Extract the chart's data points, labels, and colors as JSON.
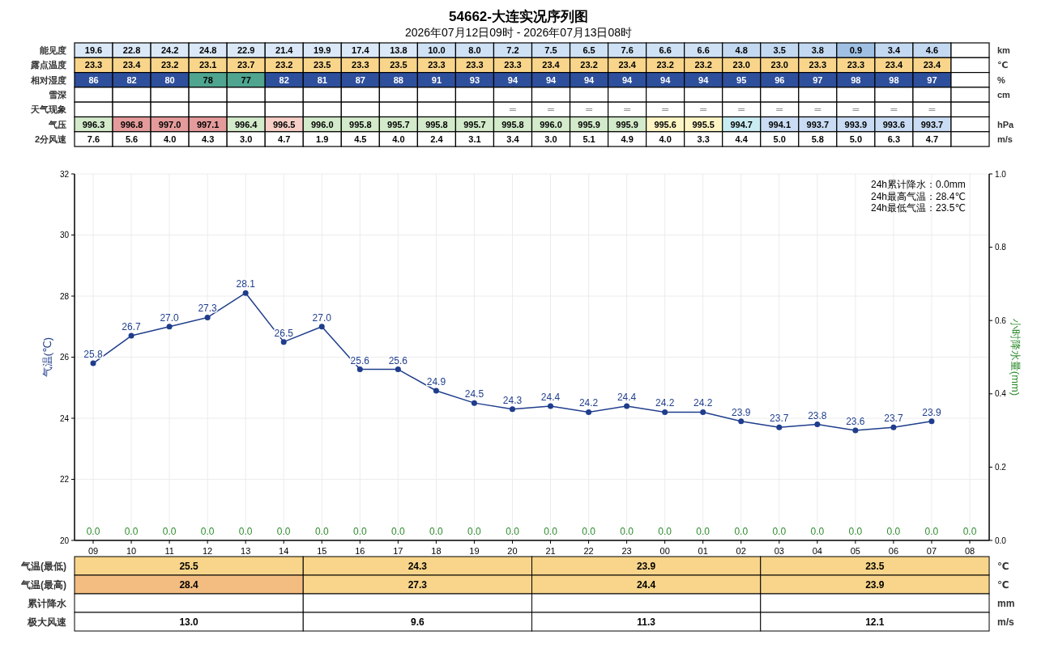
{
  "chart_data": [
    {
      "type": "heatmap",
      "title": "54662-大连实况序列图",
      "subtitle": "2026年07月12日09时 - 2026年07月13日08时",
      "categories": [
        null,
        null,
        null,
        null,
        null,
        null,
        null,
        null,
        null,
        null,
        null,
        null,
        null,
        null,
        null,
        null,
        null,
        null,
        null,
        null,
        null,
        null,
        null,
        null
      ],
      "y_categories": [
        "能见度",
        "露点温度",
        "相对湿度",
        "雪深",
        "天气现象",
        "气压",
        "2分风速"
      ],
      "y2_categories": [
        "km",
        "℃",
        "%",
        "cm",
        null,
        "hPa",
        "m/s"
      ],
      "cells": [
        [
          19.6,
          22.8,
          24.2,
          24.8,
          22.9,
          21.4,
          19.9,
          17.4,
          13.8,
          10.0,
          8.0,
          7.2,
          7.5,
          6.5,
          7.6,
          6.6,
          6.6,
          4.8,
          3.5,
          3.8,
          0.9,
          3.4,
          4.6,
          null
        ],
        [
          23.3,
          23.4,
          23.2,
          23.1,
          23.7,
          23.2,
          23.5,
          23.3,
          23.5,
          23.3,
          23.3,
          23.3,
          23.4,
          23.2,
          23.4,
          23.2,
          23.2,
          23.0,
          23.0,
          23.3,
          23.3,
          23.4,
          23.4,
          null
        ],
        [
          86,
          82,
          80,
          78,
          77,
          82,
          81,
          87,
          88,
          91,
          93,
          94,
          94,
          94,
          94,
          94,
          94,
          95,
          96,
          97,
          98,
          98,
          97,
          null
        ],
        [
          null,
          null,
          null,
          null,
          null,
          null,
          null,
          null,
          null,
          null,
          null,
          null,
          null,
          null,
          null,
          null,
          null,
          null,
          null,
          null,
          null,
          null,
          null,
          null
        ],
        [
          null,
          null,
          null,
          null,
          null,
          null,
          null,
          null,
          null,
          null,
          null,
          null,
          null,
          null,
          null,
          null,
          null,
          null,
          null,
          null,
          null,
          null,
          null,
          null
        ],
        [
          996.3,
          996.8,
          997.0,
          997.1,
          996.4,
          996.5,
          996.0,
          995.8,
          995.7,
          995.8,
          995.7,
          995.8,
          996.0,
          995.9,
          995.9,
          995.6,
          995.5,
          994.7,
          994.1,
          993.7,
          993.9,
          993.6,
          993.7,
          null
        ],
        [
          7.6,
          5.6,
          4.0,
          4.3,
          3.0,
          4.7,
          1.9,
          4.5,
          4.0,
          2.4,
          3.1,
          3.4,
          3.0,
          5.1,
          4.9,
          4.0,
          3.3,
          4.4,
          5.0,
          5.8,
          5.0,
          6.3,
          4.7,
          null
        ]
      ],
      "cell_labels": [
        [
          "19.6",
          "22.8",
          "24.2",
          "24.8",
          "22.9",
          "21.4",
          "19.9",
          "17.4",
          "13.8",
          "10.0",
          "8.0",
          "7.2",
          "7.5",
          "6.5",
          "7.6",
          "6.6",
          "6.6",
          "4.8",
          "3.5",
          "3.8",
          "0.9",
          "3.4",
          "4.6",
          null
        ],
        [
          "23.3",
          "23.4",
          "23.2",
          "23.1",
          "23.7",
          "23.2",
          "23.5",
          "23.3",
          "23.5",
          "23.3",
          "23.3",
          "23.3",
          "23.4",
          "23.2",
          "23.4",
          "23.2",
          "23.2",
          "23.0",
          "23.0",
          "23.3",
          "23.3",
          "23.4",
          "23.4",
          null
        ],
        [
          "86",
          "82",
          "80",
          "78",
          "77",
          "82",
          "81",
          "87",
          "88",
          "91",
          "93",
          "94",
          "94",
          "94",
          "94",
          "94",
          "94",
          "95",
          "96",
          "97",
          "98",
          "98",
          "97",
          null
        ],
        [
          null,
          null,
          null,
          null,
          null,
          null,
          null,
          null,
          null,
          null,
          null,
          null,
          null,
          null,
          null,
          null,
          null,
          null,
          null,
          null,
          null,
          null,
          null,
          null
        ],
        [
          null,
          null,
          null,
          null,
          null,
          null,
          null,
          null,
          null,
          null,
          null,
          "═",
          "═",
          "═",
          "═",
          "═",
          "═",
          "═",
          "═",
          "═",
          "═",
          "═",
          "═",
          null
        ],
        [
          "996.3",
          "996.8",
          "997.0",
          "997.1",
          "996.4",
          "996.5",
          "996.0",
          "995.8",
          "995.7",
          "995.8",
          "995.7",
          "995.8",
          "996.0",
          "995.9",
          "995.9",
          "995.6",
          "995.5",
          "994.7",
          "994.1",
          "993.7",
          "993.9",
          "993.6",
          "993.7",
          null
        ],
        [
          "7.6",
          "5.6",
          "4.0",
          "4.3",
          "3.0",
          "4.7",
          "1.9",
          "4.5",
          "4.0",
          "2.4",
          "3.1",
          "3.4",
          "3.0",
          "5.1",
          "4.9",
          "4.0",
          "3.3",
          "4.4",
          "5.0",
          "5.8",
          "5.0",
          "6.3",
          "4.7",
          null
        ]
      ],
      "colors": [
        [
          "#dbe8f7",
          "#dbe8f7",
          "#dbe8f7",
          "#dbe8f7",
          "#dbe8f7",
          "#dbe8f7",
          "#dbe8f7",
          "#dbe8f7",
          "#dbe8f7",
          "#cfe1f4",
          "#cfe1f4",
          "#cfe1f4",
          "#cfe1f4",
          "#cfe1f4",
          "#cfe1f4",
          "#cfe1f4",
          "#cfe1f4",
          "#c3d9f1",
          "#c3d9f1",
          "#c3d9f1",
          "#9fc0e3",
          "#c3d9f1",
          "#c3d9f1",
          "#ffffff"
        ],
        [
          "#f8d58a",
          "#f8d58a",
          "#f8d58a",
          "#f8d58a",
          "#f8d58a",
          "#f8d58a",
          "#f8d58a",
          "#f8d58a",
          "#f8d58a",
          "#f8d58a",
          "#f8d58a",
          "#f8d58a",
          "#f8d58a",
          "#f8d58a",
          "#f8d58a",
          "#f8d58a",
          "#f8d58a",
          "#f8d58a",
          "#f8d58a",
          "#f8d58a",
          "#f8d58a",
          "#f8d58a",
          "#f8d58a",
          "#ffffff"
        ],
        [
          "#2e4f9c",
          "#2e4f9c",
          "#2e4f9c",
          "#4fa58f",
          "#4fa58f",
          "#2e4f9c",
          "#2e4f9c",
          "#2e4f9c",
          "#2e4f9c",
          "#2e4f9c",
          "#2e4f9c",
          "#2e4f9c",
          "#2e4f9c",
          "#2e4f9c",
          "#2e4f9c",
          "#2e4f9c",
          "#2e4f9c",
          "#2e4f9c",
          "#2e4f9c",
          "#2e4f9c",
          "#2e4f9c",
          "#2e4f9c",
          "#2e4f9c",
          "#ffffff"
        ],
        [
          "#ffffff",
          "#ffffff",
          "#ffffff",
          "#ffffff",
          "#ffffff",
          "#ffffff",
          "#ffffff",
          "#ffffff",
          "#ffffff",
          "#ffffff",
          "#ffffff",
          "#ffffff",
          "#ffffff",
          "#ffffff",
          "#ffffff",
          "#ffffff",
          "#ffffff",
          "#ffffff",
          "#ffffff",
          "#ffffff",
          "#ffffff",
          "#ffffff",
          "#ffffff",
          "#ffffff"
        ],
        [
          "#ffffff",
          "#ffffff",
          "#ffffff",
          "#ffffff",
          "#ffffff",
          "#ffffff",
          "#ffffff",
          "#ffffff",
          "#ffffff",
          "#ffffff",
          "#ffffff",
          "#ffffff",
          "#ffffff",
          "#ffffff",
          "#ffffff",
          "#ffffff",
          "#ffffff",
          "#ffffff",
          "#ffffff",
          "#ffffff",
          "#ffffff",
          "#ffffff",
          "#ffffff",
          "#ffffff"
        ],
        [
          "#d3eacb",
          "#e59b9b",
          "#e59b9b",
          "#e59b9b",
          "#d3eacb",
          "#f7cfc7",
          "#d3eacb",
          "#d3eacb",
          "#d3eacb",
          "#d3eacb",
          "#d3eacb",
          "#d3eacb",
          "#d3eacb",
          "#d3eacb",
          "#d3eacb",
          "#fdf5c4",
          "#fdf5c4",
          "#c8ecf2",
          "#c9dcf3",
          "#c9dcf3",
          "#c9dcf3",
          "#c9dcf3",
          "#c9dcf3",
          "#ffffff"
        ],
        [
          "#ffffff",
          "#ffffff",
          "#ffffff",
          "#ffffff",
          "#ffffff",
          "#ffffff",
          "#ffffff",
          "#ffffff",
          "#ffffff",
          "#ffffff",
          "#ffffff",
          "#ffffff",
          "#ffffff",
          "#ffffff",
          "#ffffff",
          "#ffffff",
          "#ffffff",
          "#ffffff",
          "#ffffff",
          "#ffffff",
          "#ffffff",
          "#ffffff",
          "#ffffff",
          "#ffffff"
        ]
      ]
    },
    {
      "type": "line",
      "categories": [
        "09",
        "10",
        "11",
        "12",
        "13",
        "14",
        "15",
        "16",
        "17",
        "18",
        "19",
        "20",
        "21",
        "22",
        "23",
        "00",
        "01",
        "02",
        "03",
        "04",
        "05",
        "06",
        "07",
        "08"
      ],
      "ylabel": "气温(℃)",
      "y2label": "小时降水量(mm)",
      "ylim": [
        20,
        32
      ],
      "yticks": [
        20,
        22,
        24,
        26,
        28,
        30,
        32
      ],
      "y2lim": [
        0,
        1
      ],
      "y2ticks": [
        {
          "value": 0,
          "label": "0.0"
        },
        {
          "value": 0.2,
          "label": "0.2"
        },
        {
          "value": 0.4,
          "label": "0.4"
        },
        {
          "value": 0.6,
          "label": "0.6"
        },
        {
          "value": 0.8,
          "label": "0.8"
        },
        {
          "value": 1,
          "label": "1.0"
        }
      ],
      "grid": true,
      "marker": "circle",
      "series": [
        {
          "type": "line",
          "color": "#1f3d8c",
          "values": [
            25.8,
            26.7,
            27.0,
            27.3,
            28.1,
            26.5,
            27.0,
            25.6,
            25.6,
            24.9,
            24.5,
            24.3,
            24.4,
            24.2,
            24.4,
            24.2,
            24.2,
            23.9,
            23.7,
            23.8,
            23.6,
            23.7,
            23.9,
            null
          ],
          "value_labels": [
            "25.8",
            "26.7",
            "27.0",
            "27.3",
            "28.1",
            "26.5",
            "27.0",
            "25.6",
            "25.6",
            "24.9",
            "24.5",
            "24.3",
            "24.4",
            "24.2",
            "24.4",
            "24.2",
            "24.2",
            "23.9",
            "23.7",
            "23.8",
            "23.6",
            "23.7",
            "23.9",
            null
          ]
        },
        {
          "type": "bar",
          "axis": "y2",
          "color": "#2e8b2e",
          "values": [
            0,
            0,
            0,
            0,
            0,
            0,
            0,
            0,
            0,
            0,
            0,
            0,
            0,
            0,
            0,
            0,
            0,
            0,
            0,
            0,
            0,
            0,
            0,
            0
          ],
          "value_labels": [
            "0.0",
            "0.0",
            "0.0",
            "0.0",
            "0.0",
            "0.0",
            "0.0",
            "0.0",
            "0.0",
            "0.0",
            "0.0",
            "0.0",
            "0.0",
            "0.0",
            "0.0",
            "0.0",
            "0.0",
            "0.0",
            "0.0",
            "0.0",
            "0.0",
            "0.0",
            "0.0",
            "0.0"
          ]
        }
      ],
      "annotations": [
        "24h累计降水：0.0mm",
        "24h最高气温：28.4℃",
        "24h最低气温：23.5℃"
      ]
    },
    {
      "type": "heatmap",
      "categories": [
        null,
        null,
        null,
        null
      ],
      "y_categories": [
        "气温(最低)",
        "气温(最高)",
        "累计降水",
        "极大风速"
      ],
      "y2_categories": [
        "℃",
        "℃",
        "mm",
        "m/s"
      ],
      "cells": [
        [
          25.5,
          24.3,
          23.9,
          23.5
        ],
        [
          28.4,
          27.3,
          24.4,
          23.9
        ],
        [
          null,
          null,
          null,
          null
        ],
        [
          13.0,
          9.6,
          11.3,
          12.1
        ]
      ],
      "cell_labels": [
        [
          "25.5",
          "24.3",
          "23.9",
          "23.5"
        ],
        [
          "28.4",
          "27.3",
          "24.4",
          "23.9"
        ],
        [
          null,
          null,
          null,
          null
        ],
        [
          "13.0",
          "9.6",
          "11.3",
          "12.1"
        ]
      ],
      "colors": [
        [
          "#f8d58a",
          "#f8d58a",
          "#f8d58a",
          "#f8d58a"
        ],
        [
          "#f3bd82",
          "#f8d58a",
          "#f8d58a",
          "#f8d58a"
        ],
        [
          "#ffffff",
          "#ffffff",
          "#ffffff",
          "#ffffff"
        ],
        [
          "#ffffff",
          "#ffffff",
          "#ffffff",
          "#ffffff"
        ]
      ]
    }
  ]
}
